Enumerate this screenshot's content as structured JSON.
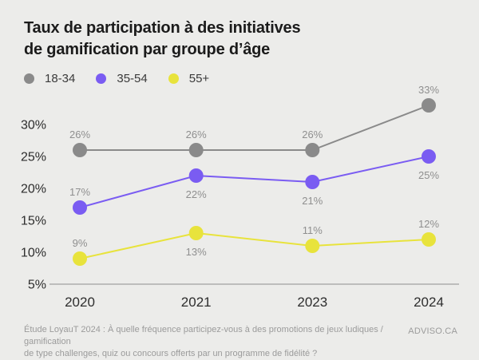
{
  "page": {
    "background": "#ECECEA"
  },
  "title": {
    "line1": "Taux de participation à des initiatives",
    "line2": "de gamification par groupe d’âge"
  },
  "legend": [
    {
      "label": "18-34",
      "color": "#8A8A8A"
    },
    {
      "label": "35-54",
      "color": "#7A5CF2"
    },
    {
      "label": "55+",
      "color": "#E8E33C"
    }
  ],
  "chart_data": {
    "type": "line",
    "title": "Taux de participation à des initiatives de gamification par groupe d’âge",
    "x": [
      "2020",
      "2021",
      "2023",
      "2024"
    ],
    "series": [
      {
        "name": "18-34",
        "color": "#8A8A8A",
        "values": [
          26,
          26,
          26,
          33
        ],
        "labels": [
          "26%",
          "26%",
          "26%",
          "33%"
        ],
        "label_positions": [
          "above",
          "above",
          "above",
          "above"
        ]
      },
      {
        "name": "35-54",
        "color": "#7A5CF2",
        "values": [
          17,
          22,
          21,
          25
        ],
        "labels": [
          "17%",
          "22%",
          "21%",
          "25%"
        ],
        "label_positions": [
          "above",
          "below",
          "below",
          "below"
        ]
      },
      {
        "name": "55+",
        "color": "#E8E33C",
        "values": [
          9,
          13,
          11,
          12
        ],
        "labels": [
          "9%",
          "13%",
          "11%",
          "12%"
        ],
        "label_positions": [
          "above",
          "below",
          "above",
          "above"
        ]
      }
    ],
    "y_ticks": [
      "30%",
      "25%",
      "20%",
      "15%",
      "10%",
      "5%"
    ],
    "y_tick_values": [
      30,
      25,
      20,
      15,
      10,
      5
    ],
    "ylim": [
      5,
      35
    ],
    "grid": false,
    "baseline_value": 5,
    "legend_position": "top-left",
    "axis_color": "#ADADAD",
    "tick_label_color": "#2D2D2D",
    "data_label_color": "#8F8F8F"
  },
  "footer": {
    "lines": [
      "Étude LoyauT 2024 : À quelle fréquence participez-vous à des promotions de jeux ludiques / gamification",
      "de type challenges, quiz ou concours offerts par un programme de fidélité ?"
    ],
    "brand": "ADVISO.CA"
  }
}
